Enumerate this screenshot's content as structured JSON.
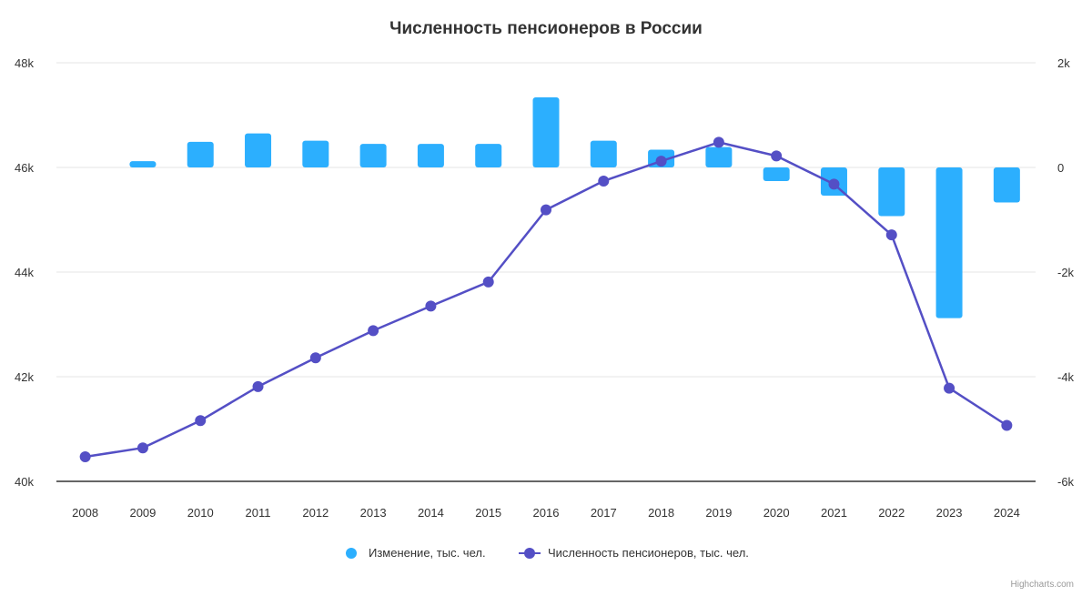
{
  "chart_data": {
    "type": "bar+line",
    "title": "Численность пенсионеров в России",
    "categories": [
      "2008",
      "2009",
      "2010",
      "2011",
      "2012",
      "2013",
      "2014",
      "2015",
      "2016",
      "2017",
      "2018",
      "2019",
      "2020",
      "2021",
      "2022",
      "2023",
      "2024"
    ],
    "series": [
      {
        "name": "Изменение, тыс. чел.",
        "type": "bar",
        "axis": "right",
        "color": "#2caffe",
        "values": [
          null,
          120,
          490,
          650,
          510,
          450,
          450,
          450,
          1340,
          510,
          340,
          390,
          -260,
          -540,
          -930,
          -2880,
          -670
        ]
      },
      {
        "name": "Численность пенсионеров, тыс. чел.",
        "type": "line",
        "axis": "left",
        "color": "#544fc5",
        "values": [
          40470,
          40640,
          41160,
          41810,
          42360,
          42880,
          43350,
          43810,
          45190,
          45740,
          46120,
          46480,
          46220,
          45680,
          44710,
          41780,
          41070
        ]
      }
    ],
    "y_left": {
      "min": 40000,
      "max": 48000,
      "ticks": [
        "40k",
        "42k",
        "44k",
        "46k",
        "48k"
      ]
    },
    "y_right": {
      "min": -6000,
      "max": 2000,
      "ticks": [
        "-6k",
        "-4k",
        "-2k",
        "0",
        "2k"
      ]
    },
    "grid": true,
    "legend": "bottom-center"
  },
  "credits": "Highcharts.com"
}
